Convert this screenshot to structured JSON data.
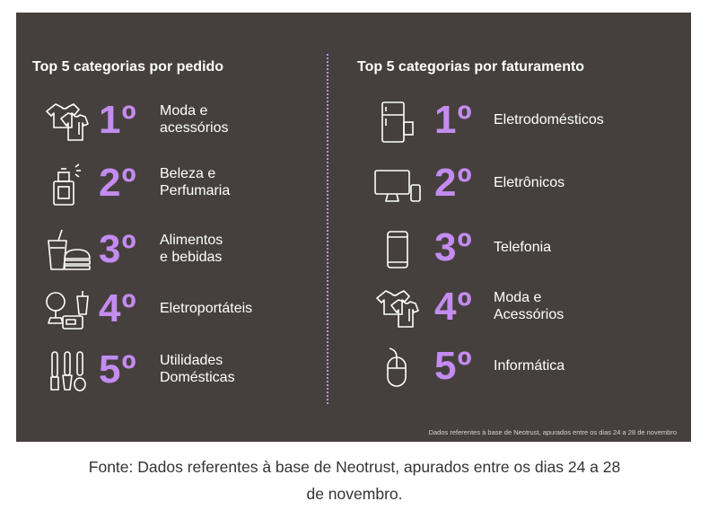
{
  "colors": {
    "panel": "#45403d",
    "accent": "#c48bf0",
    "text": "#ffffff"
  },
  "left_title": "Top 5 categorias por pedido",
  "right_title": "Top 5 categorias por faturamento",
  "left_rows": [
    {
      "rank": "1º",
      "lines": [
        "Moda e",
        "acessórios"
      ],
      "icon": "clothes-icon"
    },
    {
      "rank": "2º",
      "lines": [
        "Beleza e",
        "Perfumaria"
      ],
      "icon": "perfume-icon"
    },
    {
      "rank": "3º",
      "lines": [
        "Alimentos",
        "e bebidas"
      ],
      "icon": "food-icon"
    },
    {
      "rank": "4º",
      "lines": [
        "Eletroportáteis"
      ],
      "icon": "appliances-icon"
    },
    {
      "rank": "5º",
      "lines": [
        "Utilidades",
        "Domésticas"
      ],
      "icon": "utensils-icon"
    }
  ],
  "right_rows": [
    {
      "rank": "1º",
      "lines": [
        "Eletrodomésticos"
      ],
      "icon": "fridge-icon"
    },
    {
      "rank": "2º",
      "lines": [
        "Eletrônicos"
      ],
      "icon": "monitor-icon"
    },
    {
      "rank": "3º",
      "lines": [
        "Telefonia"
      ],
      "icon": "phone-icon"
    },
    {
      "rank": "4º",
      "lines": [
        "Moda e",
        "Acessórios"
      ],
      "icon": "clothes-icon"
    },
    {
      "rank": "5º",
      "lines": [
        "Informática"
      ],
      "icon": "mouse-icon"
    }
  ],
  "note": "Dados referentes à base de Neotrust, apurados entre os dias 24 a 28 de novembro",
  "caption_lines": [
    "Fonte: Dados referentes à base de Neotrust, apurados entre os dias 24 a 28",
    "de novembro."
  ]
}
